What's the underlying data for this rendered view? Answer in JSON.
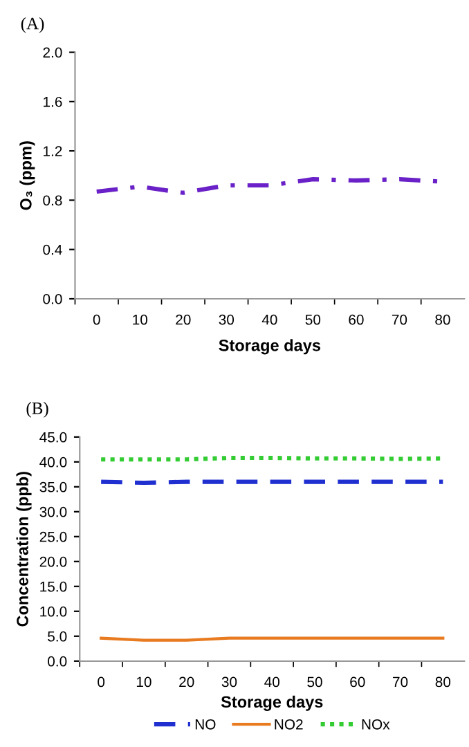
{
  "chart_data": [
    {
      "type": "line",
      "title": "(A)",
      "xlabel": "Storage days",
      "ylabel": "O₃ (ppm)",
      "categories": [
        "0",
        "10",
        "20",
        "30",
        "40",
        "50",
        "60",
        "70",
        "80"
      ],
      "series": [
        {
          "color": "#6a22c8",
          "line_style": "dashdot",
          "values": [
            0.87,
            0.91,
            0.86,
            0.92,
            0.92,
            0.97,
            0.96,
            0.97,
            0.95
          ]
        }
      ],
      "ylim": [
        0.0,
        2.0
      ],
      "yticks": [
        {
          "value": 0.0,
          "label": "0.0"
        },
        {
          "value": 0.4,
          "label": "0.4"
        },
        {
          "value": 0.8,
          "label": "0.8"
        },
        {
          "value": 1.2,
          "label": "1.2"
        },
        {
          "value": 1.6,
          "label": "1.6"
        },
        {
          "value": 2.0,
          "label": "2.0"
        }
      ],
      "grid": false,
      "legend": false
    },
    {
      "type": "line",
      "title": "(B)",
      "xlabel": "Storage days",
      "ylabel": "Concentration (ppb)",
      "categories": [
        "0",
        "10",
        "20",
        "30",
        "40",
        "50",
        "60",
        "70",
        "80"
      ],
      "series": [
        {
          "name": "NO",
          "color": "#1f2fd0",
          "line_style": "dashed",
          "values": [
            36.0,
            35.8,
            36.0,
            36.0,
            36.0,
            36.0,
            36.0,
            36.0,
            36.0
          ]
        },
        {
          "name": "NO2",
          "color": "#e87a20",
          "line_style": "solid",
          "values": [
            4.6,
            4.2,
            4.2,
            4.6,
            4.6,
            4.6,
            4.6,
            4.6,
            4.6
          ]
        },
        {
          "name": "NOx",
          "color": "#33cc33",
          "line_style": "dotted",
          "values": [
            40.5,
            40.5,
            40.5,
            40.8,
            40.8,
            40.7,
            40.7,
            40.6,
            40.7
          ]
        }
      ],
      "ylim": [
        0.0,
        45.0
      ],
      "yticks": [
        {
          "value": 0,
          "label": "0.0"
        },
        {
          "value": 5,
          "label": "5.0"
        },
        {
          "value": 10,
          "label": "10.0"
        },
        {
          "value": 15,
          "label": "15.0"
        },
        {
          "value": 20,
          "label": "20.0"
        },
        {
          "value": 25,
          "label": "25.0"
        },
        {
          "value": 30,
          "label": "30.0"
        },
        {
          "value": 35,
          "label": "35.0"
        },
        {
          "value": 40,
          "label": "40.0"
        },
        {
          "value": 45,
          "label": "45.0"
        }
      ],
      "grid": false,
      "legend": "bottom"
    }
  ]
}
